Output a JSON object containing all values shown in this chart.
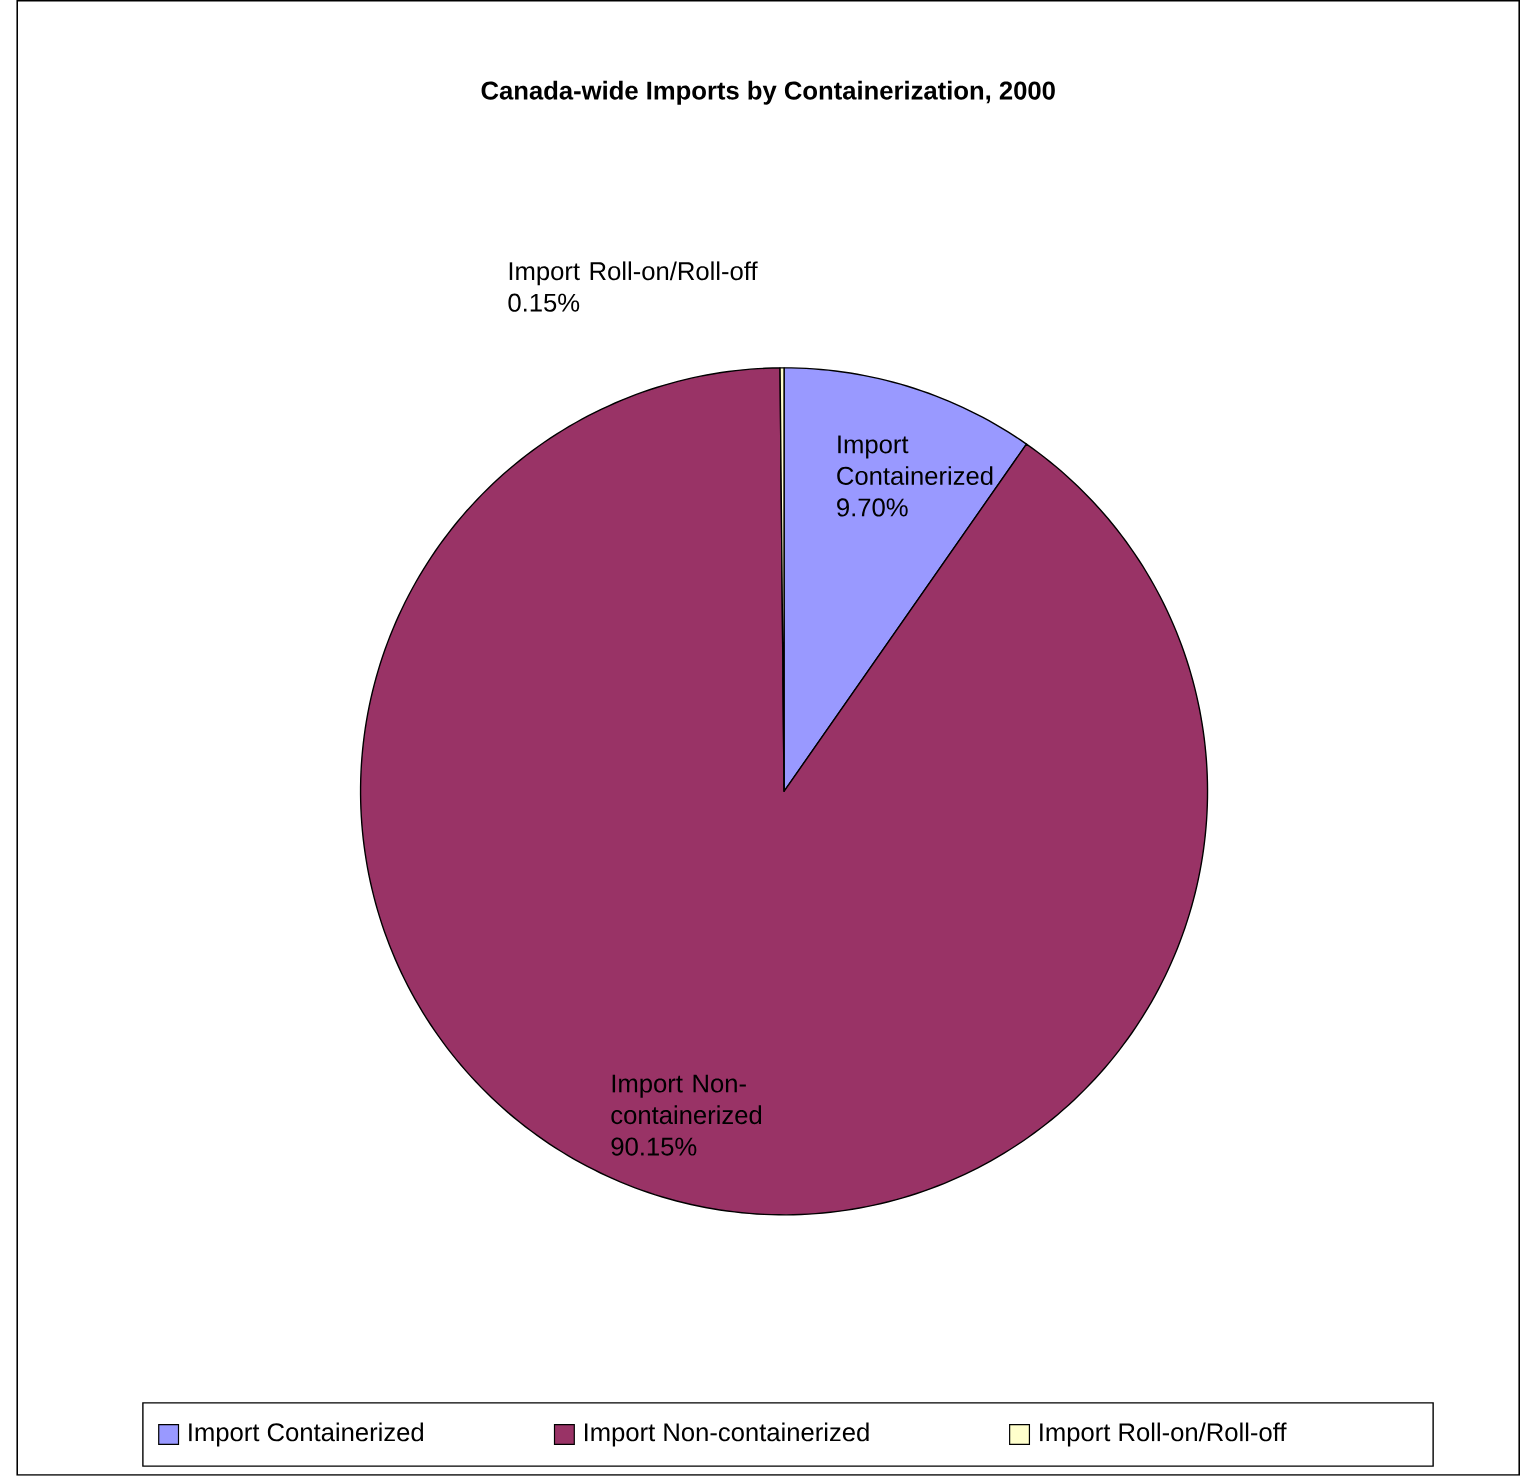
{
  "chart_data": {
    "type": "pie",
    "title": "Canada-wide Imports by Containerization, 2000",
    "categories": [
      "Import Containerized",
      "Import Non-containerized",
      "Import Roll-on/Roll-off"
    ],
    "values": [
      9.7,
      90.15,
      0.15
    ],
    "colors": [
      "#9999ff",
      "#993366",
      "#ffffcc"
    ],
    "value_labels": [
      "9.70%",
      "90.15%",
      "0.15%"
    ],
    "legend": "bottom"
  }
}
